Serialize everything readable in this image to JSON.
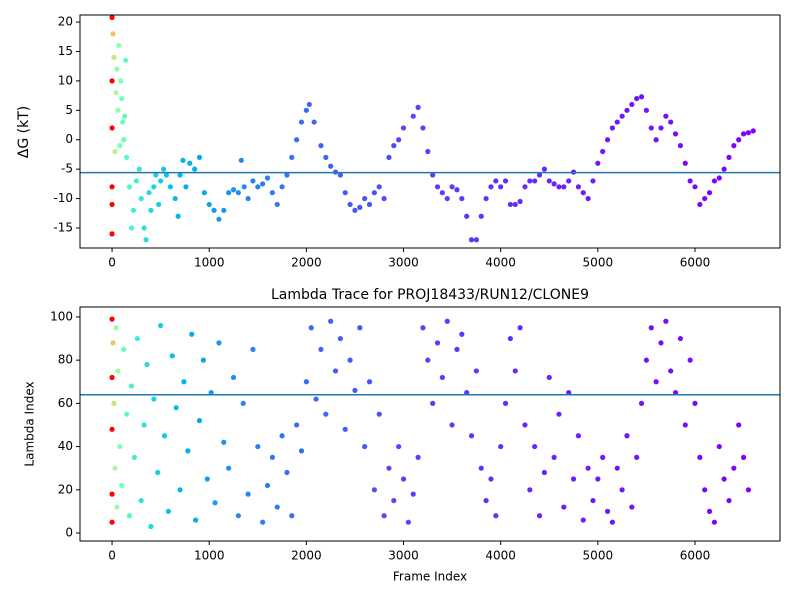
{
  "chart_data": [
    {
      "type": "scatter",
      "ylabel": "ΔG (kT)",
      "x": [
        0,
        0,
        0,
        0,
        0,
        0,
        10,
        20,
        30,
        40,
        50,
        60,
        70,
        80,
        90,
        100,
        110,
        120,
        130,
        140,
        150,
        180,
        200,
        220,
        250,
        280,
        300,
        330,
        350,
        380,
        400,
        430,
        450,
        480,
        500,
        530,
        560,
        600,
        650,
        680,
        700,
        730,
        760,
        800,
        850,
        900,
        950,
        1000,
        1050,
        1100,
        1150,
        1200,
        1250,
        1300,
        1330,
        1360,
        1400,
        1450,
        1500,
        1550,
        1600,
        1650,
        1700,
        1750,
        1800,
        1850,
        1900,
        1950,
        2000,
        2030,
        2080,
        2150,
        2200,
        2250,
        2300,
        2350,
        2400,
        2450,
        2500,
        2550,
        2600,
        2650,
        2700,
        2750,
        2800,
        2850,
        2900,
        2950,
        3000,
        3100,
        3150,
        3200,
        3250,
        3300,
        3350,
        3400,
        3450,
        3500,
        3550,
        3600,
        3650,
        3700,
        3750,
        3800,
        3850,
        3900,
        3950,
        4000,
        4050,
        4100,
        4150,
        4200,
        4250,
        4300,
        4350,
        4400,
        4450,
        4500,
        4550,
        4600,
        4650,
        4700,
        4750,
        4800,
        4850,
        4900,
        4950,
        5000,
        5050,
        5100,
        5150,
        5200,
        5250,
        5300,
        5350,
        5400,
        5450,
        5500,
        5550,
        5600,
        5650,
        5700,
        5750,
        5800,
        5850,
        5900,
        5950,
        6000,
        6050,
        6100,
        6150,
        6200,
        6250,
        6300,
        6350,
        6400,
        6450,
        6500,
        6550,
        6600
      ],
      "values": [
        -16,
        -11,
        -8,
        2,
        10,
        20.8,
        18,
        14,
        -2,
        8,
        12,
        5,
        16,
        -1,
        10,
        7,
        3,
        0,
        4,
        13.5,
        -3,
        -8,
        -15,
        -12,
        -7,
        -5,
        -10,
        -15,
        -17,
        -9,
        -12,
        -8,
        -6,
        -11,
        -7,
        -5,
        -6,
        -8,
        -10,
        -13,
        -6,
        -3.5,
        -8,
        -4,
        -5,
        -3,
        -9,
        -11,
        -12,
        -13.5,
        -12,
        -9,
        -8.5,
        -9,
        -3.5,
        -8,
        -10,
        -7,
        -8,
        -7.5,
        -6.5,
        -9,
        -11,
        -8,
        -6,
        -3,
        0,
        3,
        5,
        6,
        3,
        -1,
        -3,
        -4.5,
        -5.5,
        -6,
        -9,
        -11,
        -12,
        -11.5,
        -10,
        -11,
        -9,
        -8,
        -10,
        -3,
        -1,
        0,
        2,
        4,
        5.5,
        2,
        -2,
        -6,
        -8,
        -9,
        -10,
        -8,
        -8.5,
        -10,
        -13,
        -17,
        -17,
        -13,
        -10,
        -8,
        -7,
        -8,
        -7,
        -11,
        -11,
        -10.5,
        -8,
        -7,
        -7,
        -6,
        -5,
        -7,
        -7.5,
        -8,
        -8,
        -7,
        -5.5,
        -8,
        -9,
        -10,
        -7,
        -4,
        -2,
        0,
        2,
        3,
        4,
        5,
        6,
        7,
        7.3,
        5,
        2,
        0,
        2,
        4,
        3,
        1,
        -1,
        -4,
        -7,
        -8,
        -11,
        -10,
        -9,
        -7,
        -6.5,
        -5,
        -3,
        -1,
        0,
        1,
        1.2,
        1.5
      ],
      "xlim": [
        -330,
        6875
      ],
      "ylim": [
        -18.4,
        21.2
      ],
      "xticks": [
        0,
        1000,
        2000,
        3000,
        4000,
        5000,
        6000
      ],
      "yticks": [
        -15,
        -10,
        -5,
        0,
        5,
        10,
        15,
        20
      ],
      "hline": -5.6,
      "hline_color": "#1f77b4",
      "colormap": "rainbow_r",
      "color_scale": "log"
    },
    {
      "type": "scatter",
      "title": "Lambda Trace for PROJ18433/RUN12/CLONE9",
      "xlabel": "Frame Index",
      "ylabel": "Lambda Index",
      "x": [
        0,
        0,
        0,
        0,
        0,
        10,
        20,
        30,
        40,
        50,
        60,
        80,
        100,
        120,
        150,
        180,
        200,
        230,
        260,
        300,
        330,
        360,
        400,
        430,
        470,
        500,
        540,
        580,
        620,
        660,
        700,
        740,
        780,
        820,
        860,
        900,
        940,
        980,
        1020,
        1060,
        1100,
        1150,
        1200,
        1250,
        1300,
        1350,
        1400,
        1450,
        1500,
        1550,
        1600,
        1650,
        1700,
        1750,
        1800,
        1850,
        1900,
        1950,
        2000,
        2050,
        2100,
        2150,
        2200,
        2250,
        2300,
        2350,
        2400,
        2450,
        2500,
        2550,
        2600,
        2650,
        2700,
        2750,
        2800,
        2850,
        2900,
        2950,
        3000,
        3050,
        3100,
        3150,
        3200,
        3250,
        3300,
        3350,
        3400,
        3450,
        3500,
        3550,
        3600,
        3650,
        3700,
        3750,
        3800,
        3850,
        3900,
        3950,
        4000,
        4050,
        4100,
        4150,
        4200,
        4250,
        4300,
        4350,
        4400,
        4450,
        4500,
        4550,
        4600,
        4650,
        4700,
        4750,
        4800,
        4850,
        4900,
        4950,
        5000,
        5050,
        5100,
        5150,
        5200,
        5250,
        5300,
        5350,
        5400,
        5450,
        5500,
        5550,
        5600,
        5650,
        5700,
        5750,
        5800,
        5850,
        5900,
        5950,
        6000,
        6050,
        6100,
        6150,
        6200,
        6250,
        6300,
        6350,
        6400,
        6450,
        6500,
        6550
      ],
      "values": [
        99,
        72,
        48,
        18,
        5,
        88,
        60,
        30,
        95,
        12,
        75,
        40,
        22,
        85,
        55,
        8,
        68,
        35,
        90,
        15,
        50,
        78,
        3,
        62,
        28,
        96,
        45,
        10,
        82,
        58,
        20,
        70,
        38,
        92,
        6,
        52,
        80,
        25,
        65,
        14,
        88,
        42,
        30,
        72,
        8,
        60,
        18,
        85,
        40,
        5,
        22,
        35,
        12,
        45,
        28,
        8,
        50,
        38,
        70,
        95,
        62,
        85,
        55,
        98,
        75,
        90,
        48,
        80,
        66,
        95,
        40,
        70,
        20,
        55,
        8,
        30,
        15,
        40,
        25,
        5,
        18,
        35,
        95,
        80,
        60,
        88,
        72,
        98,
        50,
        85,
        92,
        65,
        45,
        75,
        30,
        15,
        25,
        8,
        40,
        60,
        90,
        75,
        95,
        50,
        20,
        40,
        8,
        28,
        72,
        35,
        55,
        12,
        65,
        25,
        45,
        6,
        30,
        15,
        25,
        35,
        10,
        5,
        30,
        20,
        45,
        12,
        35,
        60,
        80,
        95,
        70,
        88,
        98,
        75,
        65,
        90,
        50,
        80,
        60,
        35,
        20,
        10,
        5,
        40,
        25,
        15,
        30,
        50,
        35,
        20
      ],
      "xlim": [
        -330,
        6875
      ],
      "ylim": [
        -3.7,
        104.6
      ],
      "xticks": [
        0,
        1000,
        2000,
        3000,
        4000,
        5000,
        6000
      ],
      "yticks": [
        0,
        20,
        40,
        60,
        80,
        100
      ],
      "hline": 64,
      "hline_color": "#1f77b4",
      "colormap": "rainbow_r",
      "color_scale": "log"
    }
  ]
}
